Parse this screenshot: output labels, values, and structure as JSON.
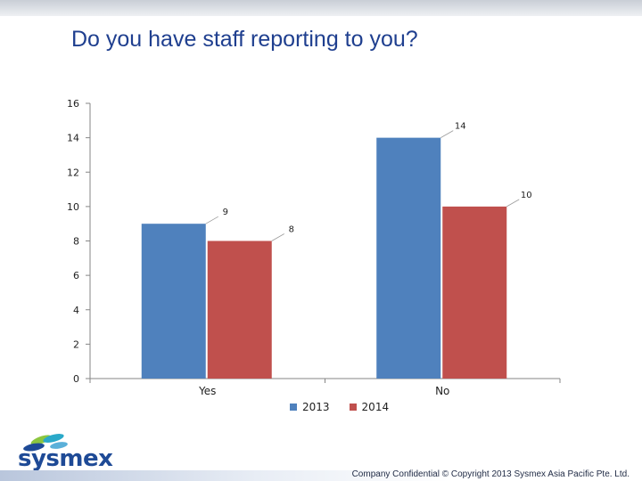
{
  "slide": {
    "title": "Do you have staff reporting to you?",
    "footer": "Company Confidential © Copyright 2013 Sysmex Asia Pacific Pte. Ltd.",
    "logo_text": "sysmex"
  },
  "colors": {
    "series_2013": "#4f81bd",
    "series_2014": "#c0504d",
    "title": "#1f3f8f",
    "logo": "#1e4a96"
  },
  "chart_data": {
    "type": "bar",
    "categories": [
      "Yes",
      "No"
    ],
    "series": [
      {
        "name": "2013",
        "values": [
          9,
          14
        ],
        "color": "#4f81bd"
      },
      {
        "name": "2014",
        "values": [
          8,
          10
        ],
        "color": "#c0504d"
      }
    ],
    "yticks": [
      "0",
      "2",
      "4",
      "6",
      "8",
      "10",
      "12",
      "14",
      "16"
    ],
    "ylim": [
      0,
      16
    ],
    "grid": false,
    "legend": "bottom",
    "data_labels": true
  }
}
